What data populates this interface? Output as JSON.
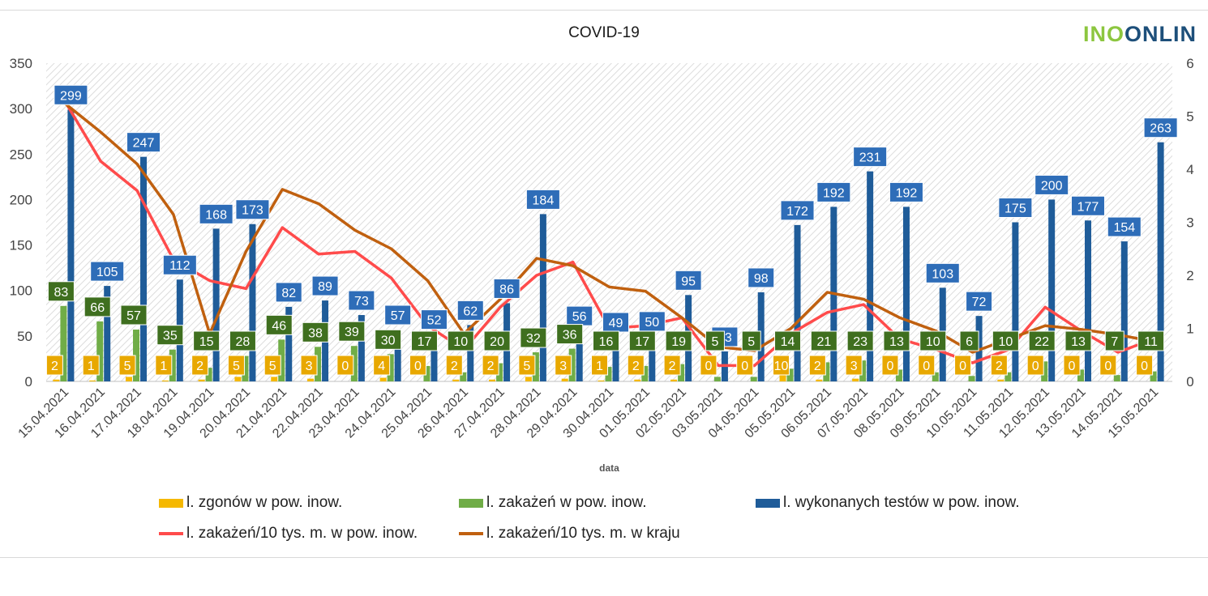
{
  "header": {
    "title": "COVID-19",
    "logo_a": "INO",
    "logo_b": "ONLIN"
  },
  "colors": {
    "deaths": "#f5b800",
    "infections": "#70ad47",
    "tests": "#1f5c99",
    "local_line": "#ff4b4b",
    "country_line": "#c0600f",
    "label_deaths": "#e8a800",
    "label_infections": "#3f6f1f",
    "label_tests": "#2e6db8"
  },
  "chart_data": {
    "type": "bar",
    "title": "COVID-19",
    "xlabel": "data",
    "ylabel": "",
    "ylim": [
      0,
      350
    ],
    "yticks": [
      "0",
      "50",
      "100",
      "150",
      "200",
      "250",
      "300",
      "350"
    ],
    "y2lim": [
      0,
      6
    ],
    "y2ticks": [
      "0",
      "1",
      "2",
      "3",
      "4",
      "5",
      "6"
    ],
    "categories": [
      "15.04.2021",
      "16.04.2021",
      "17.04.2021",
      "18.04.2021",
      "19.04.2021",
      "20.04.2021",
      "21.04.2021",
      "22.04.2021",
      "23.04.2021",
      "24.04.2021",
      "25.04.2021",
      "26.04.2021",
      "27.04.2021",
      "28.04.2021",
      "29.04.2021",
      "30.04.2021",
      "01.05.2021",
      "02.05.2021",
      "03.05.2021",
      "04.05.2021",
      "05.05.2021",
      "06.05.2021",
      "07.05.2021",
      "08.05.2021",
      "09.05.2021",
      "10.05.2021",
      "11.05.2021",
      "12.05.2021",
      "13.05.2021",
      "14.05.2021",
      "15.05.2021"
    ],
    "series": [
      {
        "name": "l. zgonów w pow. inow.",
        "axis": "left",
        "kind": "bar",
        "values": [
          2,
          1,
          5,
          1,
          2,
          5,
          5,
          3,
          0,
          4,
          0,
          2,
          2,
          5,
          3,
          1,
          2,
          2,
          0,
          0,
          10,
          2,
          3,
          0,
          0,
          0,
          2,
          0,
          0,
          0,
          0
        ]
      },
      {
        "name": "l. zakażeń w pow. inow.",
        "axis": "left",
        "kind": "bar",
        "values": [
          83,
          66,
          57,
          35,
          15,
          28,
          46,
          38,
          39,
          30,
          17,
          10,
          20,
          32,
          36,
          16,
          17,
          19,
          5,
          5,
          14,
          21,
          23,
          13,
          10,
          6,
          10,
          22,
          13,
          7,
          11
        ]
      },
      {
        "name": "l. wykonanych testów w pow. inow.",
        "axis": "left",
        "kind": "bar",
        "values": [
          299,
          105,
          247,
          112,
          168,
          173,
          82,
          89,
          73,
          57,
          52,
          62,
          86,
          184,
          56,
          49,
          50,
          95,
          33,
          98,
          172,
          192,
          231,
          192,
          103,
          72,
          175,
          200,
          177,
          154,
          263
        ]
      },
      {
        "name": "l. zakażeń/10 tys. m. w pow. inow.",
        "axis": "right",
        "kind": "line",
        "values": [
          5.3,
          4.15,
          3.6,
          2.3,
          1.9,
          1.75,
          2.9,
          2.4,
          2.45,
          1.95,
          1.05,
          0.6,
          1.4,
          2.0,
          2.25,
          1.0,
          1.05,
          1.2,
          0.3,
          0.3,
          0.9,
          1.3,
          1.45,
          0.8,
          0.6,
          0.35,
          0.6,
          1.4,
          0.95,
          0.55,
          0.8
        ]
      },
      {
        "name": "l. zakażeń/10 tys. m. w kraju",
        "axis": "right",
        "kind": "line",
        "values": [
          5.25,
          4.7,
          4.1,
          3.15,
          0.9,
          2.45,
          3.62,
          3.35,
          2.85,
          2.5,
          1.9,
          0.9,
          1.55,
          2.32,
          2.18,
          1.78,
          1.7,
          1.2,
          0.65,
          0.58,
          1.0,
          1.68,
          1.55,
          1.2,
          0.95,
          0.55,
          0.8,
          1.05,
          0.98,
          0.88,
          0.75
        ]
      }
    ],
    "legend_position": "bottom",
    "grid": false
  }
}
